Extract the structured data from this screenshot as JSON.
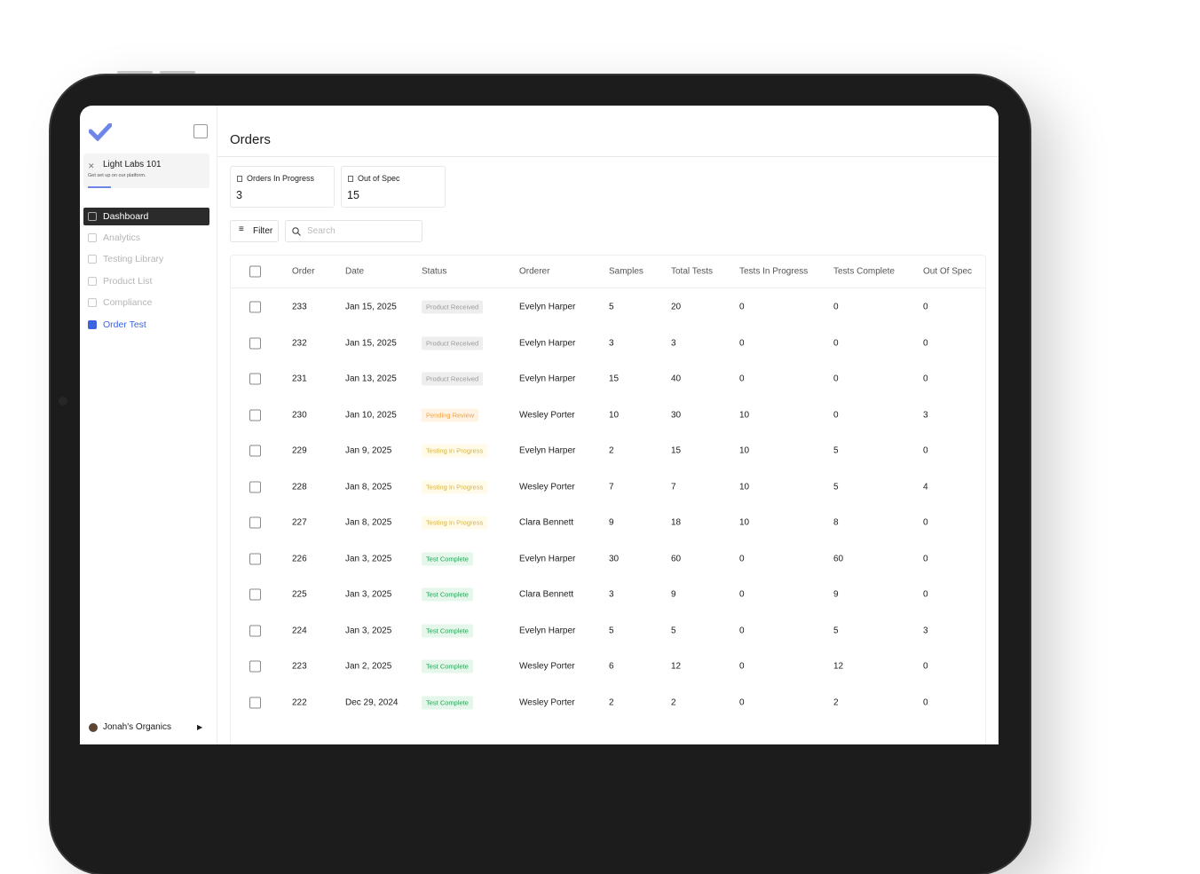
{
  "sidebar": {
    "org": "Light Labs 101",
    "org_subtitle": "Get set up on our platform.",
    "nav": [
      "Dashboard",
      "Analytics",
      "Testing Library",
      "Product List",
      "Compliance",
      "Order Test"
    ],
    "account": "Jonah's Organics"
  },
  "header": {
    "title": "Orders"
  },
  "stats": [
    {
      "label": "Orders In Progress",
      "value": 3
    },
    {
      "label": "Out of Spec",
      "value": 15
    }
  ],
  "toolbar": {
    "filter": "Filter",
    "search_placeholder": "Search"
  },
  "table": {
    "columns": [
      "Order",
      "Date",
      "Status",
      "Orderer",
      "Samples",
      "Total Tests",
      "Tests In Progress",
      "Tests Complete",
      "Out Of Spec"
    ],
    "rows": [
      [
        233,
        "Jan 15, 2025",
        "Product Received",
        "Evelyn Harper",
        5,
        20,
        0,
        0,
        0
      ],
      [
        232,
        "Jan 15, 2025",
        "Product Received",
        "Evelyn Harper",
        3,
        3,
        0,
        0,
        0
      ],
      [
        231,
        "Jan 13, 2025",
        "Product Received",
        "Evelyn Harper",
        15,
        40,
        0,
        0,
        0
      ],
      [
        230,
        "Jan 10, 2025",
        "Pending Review",
        "Wesley Porter",
        10,
        30,
        10,
        0,
        3
      ],
      [
        229,
        "Jan 9, 2025",
        "Testing In Progress",
        "Evelyn Harper",
        2,
        15,
        10,
        5,
        0
      ],
      [
        228,
        "Jan 8, 2025",
        "Testing In Progress",
        "Wesley Porter",
        7,
        7,
        10,
        5,
        4
      ],
      [
        227,
        "Jan 8, 2025",
        "Testing In Progress",
        "Clara Bennett",
        9,
        18,
        10,
        8,
        0
      ],
      [
        226,
        "Jan 3, 2025",
        "Test Complete",
        "Evelyn Harper",
        30,
        60,
        0,
        60,
        0
      ],
      [
        225,
        "Jan 3, 2025",
        "Test Complete",
        "Clara Bennett",
        3,
        9,
        0,
        9,
        0
      ],
      [
        224,
        "Jan 3, 2025",
        "Test Complete",
        "Evelyn Harper",
        5,
        5,
        0,
        5,
        3
      ],
      [
        223,
        "Jan 2, 2025",
        "Test Complete",
        "Wesley Porter",
        6,
        12,
        0,
        12,
        0
      ],
      [
        222,
        "Dec 29, 2024",
        "Test Complete",
        "Wesley Porter",
        2,
        2,
        0,
        2,
        0
      ]
    ]
  }
}
